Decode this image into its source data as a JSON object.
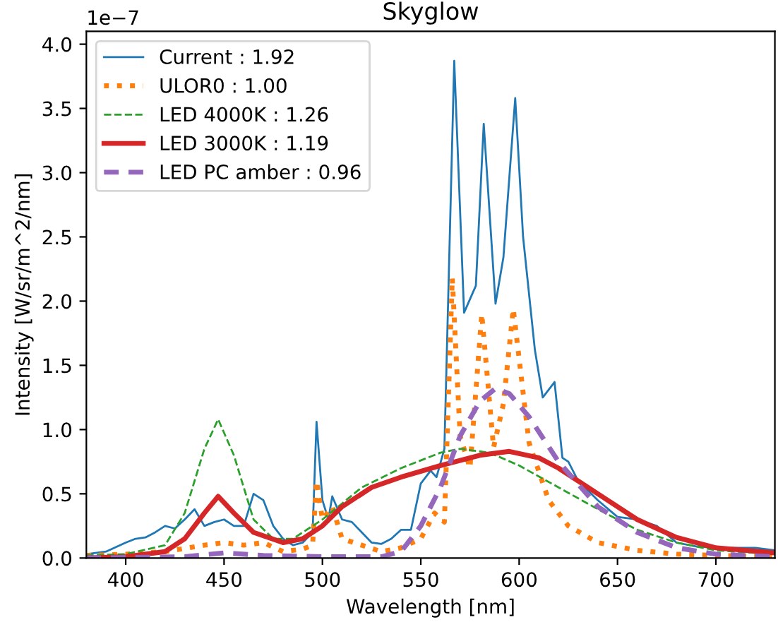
{
  "chart_data": {
    "type": "line",
    "title": "Skyglow",
    "xlabel": "Wavelength [nm]",
    "ylabel": "Intensity [W/sr/m^2/nm]",
    "annotations": [
      "1e−7"
    ],
    "xlim": [
      380,
      730
    ],
    "ylim": [
      0,
      4.1
    ],
    "xticks": [
      400,
      450,
      500,
      550,
      600,
      650,
      700
    ],
    "yticks": [
      {
        "value": 0,
        "label": "0.0"
      },
      {
        "value": 0.5,
        "label": "0.5"
      },
      {
        "value": 1,
        "label": "1.0"
      },
      {
        "value": 1.5,
        "label": "1.5"
      },
      {
        "value": 2,
        "label": "2.0"
      },
      {
        "value": 2.5,
        "label": "2.5"
      },
      {
        "value": 3,
        "label": "3.0"
      },
      {
        "value": 3.5,
        "label": "3.5"
      },
      {
        "value": 4,
        "label": "4.0"
      }
    ],
    "grid": false,
    "legend": "top left",
    "marker": "none",
    "series": [
      {
        "name": "Current : 1.92",
        "color": "#1f77b4",
        "line_style": "solid",
        "x": [
          380,
          390,
          400,
          405,
          410,
          415,
          420,
          425,
          430,
          435,
          440,
          445,
          450,
          455,
          460,
          465,
          470,
          475,
          480,
          485,
          490,
          495,
          497,
          500,
          503,
          505,
          510,
          515,
          520,
          525,
          530,
          535,
          540,
          545,
          550,
          555,
          558,
          562,
          567,
          572,
          578,
          582,
          588,
          592,
          598,
          602,
          608,
          612,
          618,
          622,
          625,
          630,
          640,
          650,
          660,
          670,
          680,
          690,
          700,
          710,
          720,
          730
        ],
        "values": [
          0.03,
          0.05,
          0.12,
          0.15,
          0.16,
          0.2,
          0.25,
          0.23,
          0.3,
          0.38,
          0.25,
          0.28,
          0.3,
          0.25,
          0.25,
          0.5,
          0.45,
          0.25,
          0.15,
          0.1,
          0.12,
          0.2,
          1.06,
          0.45,
          0.3,
          0.48,
          0.3,
          0.28,
          0.2,
          0.12,
          0.11,
          0.15,
          0.22,
          0.22,
          0.58,
          0.68,
          0.63,
          0.85,
          3.87,
          1.91,
          2.12,
          3.38,
          1.98,
          2.34,
          3.58,
          2.5,
          1.62,
          1.25,
          1.37,
          0.78,
          0.75,
          0.6,
          0.45,
          0.32,
          0.3,
          0.25,
          0.12,
          0.09,
          0.08,
          0.08,
          0.08,
          0.06
        ]
      },
      {
        "name": "ULOR0 : 1.00",
        "color": "#ff7f0e",
        "line_style": "dotted",
        "x": [
          380,
          400,
          420,
          440,
          450,
          460,
          470,
          480,
          490,
          495,
          497,
          500,
          505,
          510,
          520,
          530,
          540,
          550,
          557,
          562,
          566,
          570,
          575,
          581,
          587,
          592,
          597,
          605,
          615,
          625,
          640,
          660,
          680,
          700,
          730
        ],
        "values": [
          0.02,
          0.03,
          0.05,
          0.1,
          0.12,
          0.1,
          0.12,
          0.05,
          0.07,
          0.1,
          0.6,
          0.3,
          0.4,
          0.15,
          0.1,
          0.05,
          0.08,
          0.15,
          0.35,
          0.28,
          2.18,
          0.95,
          0.7,
          1.9,
          0.86,
          1.2,
          1.94,
          0.9,
          0.45,
          0.25,
          0.12,
          0.06,
          0.03,
          0.02,
          0.01
        ]
      },
      {
        "name": "LED 4000K : 1.26",
        "color": "#2ca02c",
        "line_style": "dashed",
        "x": [
          380,
          400,
          420,
          430,
          440,
          447,
          455,
          465,
          475,
          485,
          500,
          520,
          540,
          560,
          570,
          585,
          600,
          620,
          640,
          660,
          680,
          700,
          730
        ],
        "values": [
          0.02,
          0.03,
          0.1,
          0.35,
          0.85,
          1.08,
          0.8,
          0.3,
          0.15,
          0.15,
          0.3,
          0.55,
          0.7,
          0.82,
          0.85,
          0.82,
          0.72,
          0.55,
          0.38,
          0.22,
          0.12,
          0.06,
          0.03
        ]
      },
      {
        "name": "LED 3000K : 1.19",
        "color": "#d62728",
        "line_style": "solid",
        "x": [
          380,
          400,
          420,
          430,
          440,
          447,
          455,
          465,
          480,
          490,
          500,
          510,
          525,
          540,
          560,
          580,
          595,
          610,
          620,
          640,
          660,
          680,
          700,
          730
        ],
        "values": [
          0.0,
          0.01,
          0.05,
          0.15,
          0.35,
          0.48,
          0.35,
          0.2,
          0.12,
          0.15,
          0.25,
          0.4,
          0.55,
          0.63,
          0.72,
          0.8,
          0.83,
          0.78,
          0.7,
          0.5,
          0.3,
          0.16,
          0.08,
          0.04
        ]
      },
      {
        "name": "LED PC amber : 0.96",
        "color": "#9467bd",
        "line_style": "dashed",
        "x": [
          380,
          430,
          450,
          470,
          500,
          530,
          540,
          550,
          560,
          570,
          580,
          588,
          595,
          605,
          620,
          640,
          660,
          680,
          700,
          730
        ],
        "values": [
          0.0,
          0.01,
          0.04,
          0.02,
          0.01,
          0.01,
          0.05,
          0.25,
          0.55,
          0.95,
          1.22,
          1.32,
          1.28,
          1.1,
          0.75,
          0.4,
          0.2,
          0.08,
          0.03,
          0.01
        ]
      }
    ]
  }
}
